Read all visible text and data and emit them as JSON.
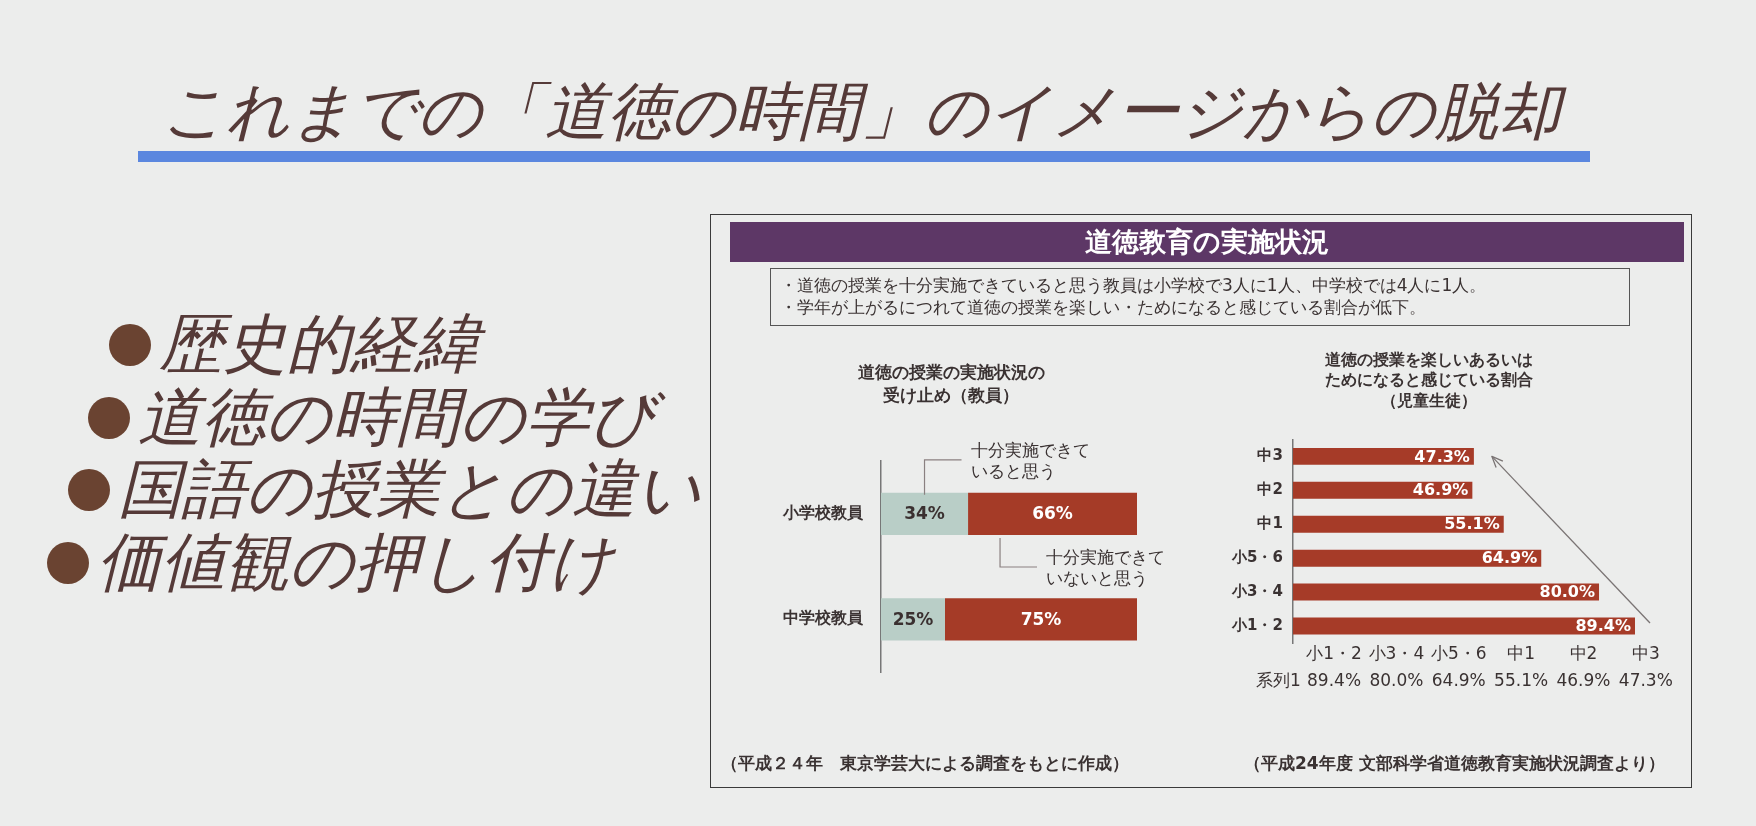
{
  "chart_data": [
    {
      "type": "other",
      "title": "これまでの「道徳の時間」のイメージからの脱却",
      "annotations": [
        "歴史的経緯",
        "道徳の時間の学び",
        "国語の授業との違い",
        "価値観の押し付け"
      ]
    },
    {
      "type": "other",
      "title": "道徳教育の実施状況",
      "annotations": [
        "・道徳の授業を十分実施できていると思う教員は小学校で3人に1人、中学校では4人に1人。",
        "・学年が上がるにつれて道徳の授業を楽しい・ためになると感じている割合が低下。"
      ]
    },
    {
      "type": "bar",
      "orientation": "horizontal",
      "stacked": true,
      "title": "道徳の授業の実施状況の受け止め（教員）",
      "categories": [
        "小学校教員",
        "中学校教員"
      ],
      "series": [
        {
          "name": "十分実施できていると思う",
          "color": "#b9cec7",
          "values": [
            34,
            25
          ],
          "value_labels": [
            "34%",
            "25%"
          ]
        },
        {
          "name": "十分実施できていないと思う",
          "color": "#a53b27",
          "values": [
            66,
            75
          ],
          "value_labels": [
            "66%",
            "75%"
          ]
        }
      ],
      "tick_labels": "y",
      "annotations": [
        "（平成２４年　東京学芸大による調査をもとに作成）"
      ]
    },
    {
      "type": "bar",
      "orientation": "horizontal",
      "title": "道徳の授業を楽しいあるいはためになると感じている割合（児童生徒）",
      "categories": [
        "中3",
        "中2",
        "中1",
        "小5・6",
        "小3・4",
        "小1・2"
      ],
      "series": [
        {
          "name": "系列1",
          "color": "#a63b28",
          "values": [
            47.3,
            46.9,
            55.1,
            64.9,
            80.0,
            89.4
          ],
          "value_labels": [
            "47.3%",
            "46.9%",
            "55.1%",
            "64.9%",
            "80.0%",
            "89.4%"
          ]
        }
      ],
      "tick_labels": "y",
      "annotations": [
        "（平成24年度 文部科学省道徳教育実施状況調査より）"
      ]
    }
  ]
}
